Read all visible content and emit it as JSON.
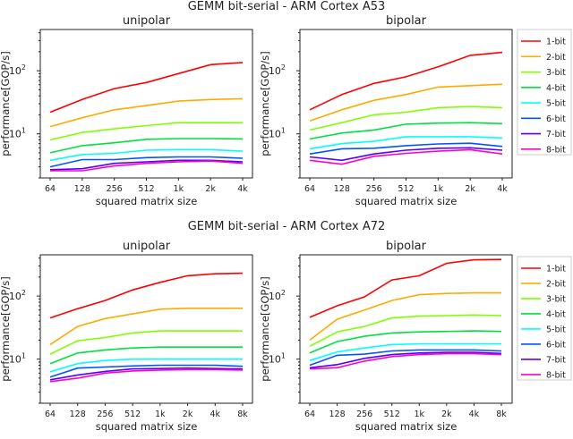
{
  "series_colors": [
    "#ff0000",
    "#ffaa00",
    "#80ff00",
    "#00e040",
    "#00ffff",
    "#0055ff",
    "#5500ff",
    "#ff00cc"
  ],
  "legend_labels": [
    "1-bit",
    "2-bit",
    "3-bit",
    "4-bit",
    "5-bit",
    "6-bit",
    "7-bit",
    "8-bit"
  ],
  "chart_data": [
    {
      "type": "line",
      "figure_title": "GEMM bit-serial - ARM Cortex A53",
      "title": "unipolar",
      "xlabel": "squared matrix size",
      "ylabel": "performance[GOP/s]",
      "yscale": "log",
      "ylim": [
        2,
        450
      ],
      "categories": [
        "64",
        "128",
        "256",
        "512",
        "1k",
        "2k",
        "4k"
      ],
      "series": [
        {
          "name": "1-bit",
          "values": [
            22,
            35,
            52,
            65,
            90,
            125,
            135
          ]
        },
        {
          "name": "2-bit",
          "values": [
            13,
            18,
            24,
            28,
            33,
            35,
            36
          ]
        },
        {
          "name": "3-bit",
          "values": [
            8,
            10.5,
            12,
            13.5,
            15,
            15,
            15
          ]
        },
        {
          "name": "4-bit",
          "values": [
            5,
            6.5,
            7.2,
            8.2,
            8.4,
            8.4,
            8.3
          ]
        },
        {
          "name": "5-bit",
          "values": [
            3.8,
            4.7,
            4.9,
            5.5,
            5.6,
            5.6,
            5.3
          ]
        },
        {
          "name": "6-bit",
          "values": [
            3.0,
            3.9,
            3.9,
            4.2,
            4.3,
            4.3,
            4.1
          ]
        },
        {
          "name": "7-bit",
          "values": [
            2.7,
            2.8,
            3.4,
            3.6,
            3.8,
            3.8,
            3.6
          ]
        },
        {
          "name": "8-bit",
          "values": [
            2.6,
            2.6,
            3.1,
            3.4,
            3.6,
            3.7,
            3.4
          ]
        }
      ],
      "legend": false
    },
    {
      "type": "line",
      "title": "bipolar",
      "xlabel": "squared matrix size",
      "ylabel": "performance[GOP/s]",
      "yscale": "log",
      "ylim": [
        2,
        450
      ],
      "categories": [
        "64",
        "128",
        "256",
        "512",
        "1k",
        "2k",
        "4k"
      ],
      "series": [
        {
          "name": "1-bit",
          "values": [
            24,
            42,
            63,
            80,
            115,
            175,
            195
          ]
        },
        {
          "name": "2-bit",
          "values": [
            16,
            24,
            34,
            42,
            55,
            58,
            61
          ]
        },
        {
          "name": "3-bit",
          "values": [
            11.5,
            15,
            20,
            22,
            26,
            27,
            26
          ]
        },
        {
          "name": "4-bit",
          "values": [
            8.3,
            10.3,
            11.5,
            14.2,
            14.8,
            15,
            14.5
          ]
        },
        {
          "name": "5-bit",
          "values": [
            5.8,
            7,
            7.6,
            9,
            9,
            9,
            8.6
          ]
        },
        {
          "name": "6-bit",
          "values": [
            4.8,
            5.8,
            5.9,
            6.5,
            6.9,
            7.1,
            6.3
          ]
        },
        {
          "name": "7-bit",
          "values": [
            4.3,
            3.8,
            4.8,
            5.5,
            5.9,
            6.0,
            5.5
          ]
        },
        {
          "name": "8-bit",
          "values": [
            3.8,
            3.3,
            4.4,
            4.9,
            5.3,
            5.6,
            4.8
          ]
        }
      ],
      "legend": "outside-right"
    },
    {
      "type": "line",
      "figure_title": "GEMM bit-serial - ARM Cortex A72",
      "title": "unipolar",
      "xlabel": "squared matrix size",
      "ylabel": "performance[GOP/s]",
      "yscale": "log",
      "ylim": [
        2,
        450
      ],
      "categories": [
        "64",
        "128",
        "256",
        "512",
        "1k",
        "2k",
        "4k",
        "8k"
      ],
      "series": [
        {
          "name": "1-bit",
          "values": [
            45,
            63,
            85,
            125,
            165,
            210,
            225,
            230
          ]
        },
        {
          "name": "2-bit",
          "values": [
            17,
            33,
            44,
            52,
            62,
            64,
            64,
            64
          ]
        },
        {
          "name": "3-bit",
          "values": [
            12,
            19.5,
            22,
            26,
            28,
            28,
            28,
            28
          ]
        },
        {
          "name": "4-bit",
          "values": [
            8.5,
            12.5,
            14,
            15,
            15.5,
            15.5,
            15.5,
            15.5
          ]
        },
        {
          "name": "5-bit",
          "values": [
            6.3,
            8.5,
            9.5,
            10,
            10,
            10,
            10,
            10
          ]
        },
        {
          "name": "6-bit",
          "values": [
            5.2,
            7.2,
            7.5,
            7.8,
            8,
            8,
            8,
            7.7
          ]
        },
        {
          "name": "7-bit",
          "values": [
            4.7,
            5.6,
            6.4,
            7,
            7.1,
            7.2,
            7.1,
            7
          ]
        },
        {
          "name": "8-bit",
          "values": [
            4.4,
            5,
            6,
            6.5,
            6.7,
            6.8,
            6.8,
            6.7
          ]
        }
      ],
      "legend": false
    },
    {
      "type": "line",
      "title": "bipolar",
      "xlabel": "squared matrix size",
      "ylabel": "performance[GOP/s]",
      "yscale": "log",
      "ylim": [
        2,
        450
      ],
      "categories": [
        "64",
        "128",
        "256",
        "512",
        "1k",
        "2k",
        "4k",
        "8k"
      ],
      "series": [
        {
          "name": "1-bit",
          "values": [
            46,
            70,
            97,
            180,
            210,
            330,
            375,
            380
          ]
        },
        {
          "name": "2-bit",
          "values": [
            20,
            43,
            60,
            85,
            105,
            110,
            112,
            112
          ]
        },
        {
          "name": "3-bit",
          "values": [
            16,
            27,
            33,
            45,
            48,
            49,
            50,
            49
          ]
        },
        {
          "name": "4-bit",
          "values": [
            12.5,
            19,
            23,
            26,
            27,
            27.5,
            28,
            27.5
          ]
        },
        {
          "name": "5-bit",
          "values": [
            9.5,
            13,
            15,
            17,
            17.5,
            17.5,
            17.5,
            17.5
          ]
        },
        {
          "name": "6-bit",
          "values": [
            8,
            11.5,
            12,
            13.5,
            14,
            14,
            14,
            13.5
          ]
        },
        {
          "name": "7-bit",
          "values": [
            7.3,
            8.2,
            10.3,
            11.8,
            12.5,
            12.8,
            12.8,
            12.3
          ]
        },
        {
          "name": "8-bit",
          "values": [
            7,
            7.3,
            9.3,
            11,
            11.8,
            12.2,
            12.2,
            11.8
          ]
        }
      ],
      "legend": "outside-right"
    }
  ],
  "ytick_labels": [
    "10",
    "10"
  ],
  "ytick_exponents": [
    "1",
    "2"
  ]
}
